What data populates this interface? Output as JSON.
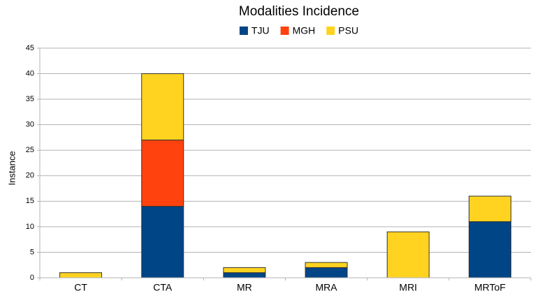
{
  "chart_data": {
    "type": "stacked_bar",
    "title": "Modalities Incidence",
    "y_label": "Instance",
    "categories": [
      "CT",
      "CTA",
      "MR",
      "MRA",
      "MRI",
      "MRToF"
    ],
    "series": [
      {
        "name": "TJU",
        "color": "#004586",
        "values": [
          0,
          14,
          1,
          2,
          0,
          11
        ]
      },
      {
        "name": "MGH",
        "color": "#ff420e",
        "values": [
          0,
          13,
          0,
          0,
          0,
          0
        ]
      },
      {
        "name": "PSU",
        "color": "#ffd320",
        "values": [
          1,
          13,
          1,
          1,
          9,
          5
        ]
      }
    ],
    "ylim": [
      0,
      45
    ],
    "yticks": [
      0,
      5,
      10,
      15,
      20,
      25,
      30,
      35,
      40,
      45
    ],
    "grid": true,
    "legend": "top"
  }
}
